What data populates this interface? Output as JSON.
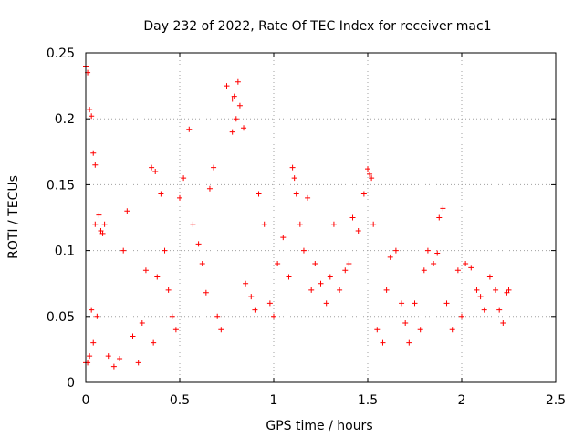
{
  "chart_data": {
    "type": "scatter",
    "title": "Day 232 of 2022, Rate Of TEC Index for receiver mac1",
    "xlabel": "GPS time / hours",
    "ylabel": "ROTI / TECUs",
    "xlim": [
      0,
      2.5
    ],
    "ylim": [
      0,
      0.25
    ],
    "xticks": [
      0,
      0.5,
      1,
      1.5,
      2,
      2.5
    ],
    "xtick_labels": [
      "0",
      "0.5",
      "1",
      "1.5",
      "2",
      "2.5"
    ],
    "yticks": [
      0,
      0.05,
      0.1,
      0.15,
      0.2,
      0.25
    ],
    "ytick_labels": [
      "0",
      "0.05",
      "0.1",
      "0.15",
      "0.2",
      "0.25"
    ],
    "grid": true,
    "marker": "+",
    "marker_color": "#ff0000",
    "series": [
      {
        "x": [
          0.0,
          0.01,
          0.02,
          0.03,
          0.04,
          0.05,
          0.03,
          0.05,
          0.07,
          0.08,
          0.09,
          0.1,
          0.06,
          0.04,
          0.02,
          0.01,
          0.0,
          0.12,
          0.15,
          0.18,
          0.2,
          0.22,
          0.25,
          0.28,
          0.3,
          0.32,
          0.35,
          0.37,
          0.38,
          0.36,
          0.4,
          0.42,
          0.44,
          0.46,
          0.48,
          0.5,
          0.52,
          0.55,
          0.57,
          0.6,
          0.62,
          0.64,
          0.66,
          0.68,
          0.7,
          0.72,
          0.75,
          0.78,
          0.8,
          0.82,
          0.84,
          0.78,
          0.79,
          0.81,
          0.85,
          0.88,
          0.9,
          0.92,
          0.95,
          0.98,
          1.0,
          1.02,
          1.05,
          1.08,
          1.1,
          1.11,
          1.12,
          1.14,
          1.16,
          1.18,
          1.2,
          1.22,
          1.25,
          1.28,
          1.3,
          1.32,
          1.35,
          1.38,
          1.4,
          1.42,
          1.45,
          1.48,
          1.5,
          1.51,
          1.52,
          1.53,
          1.55,
          1.58,
          1.6,
          1.62,
          1.65,
          1.68,
          1.7,
          1.72,
          1.75,
          1.78,
          1.8,
          1.82,
          1.85,
          1.87,
          1.88,
          1.9,
          1.92,
          1.95,
          1.98,
          2.0,
          2.02,
          2.05,
          2.08,
          2.1,
          2.12,
          2.15,
          2.18,
          2.2,
          2.22,
          2.24,
          2.25
        ],
        "y": [
          0.24,
          0.235,
          0.207,
          0.202,
          0.174,
          0.165,
          0.055,
          0.12,
          0.127,
          0.115,
          0.113,
          0.12,
          0.05,
          0.03,
          0.02,
          0.015,
          0.015,
          0.02,
          0.012,
          0.018,
          0.1,
          0.13,
          0.035,
          0.015,
          0.045,
          0.085,
          0.163,
          0.16,
          0.08,
          0.03,
          0.143,
          0.1,
          0.07,
          0.05,
          0.04,
          0.14,
          0.155,
          0.192,
          0.12,
          0.105,
          0.09,
          0.068,
          0.147,
          0.163,
          0.05,
          0.04,
          0.225,
          0.215,
          0.2,
          0.21,
          0.193,
          0.19,
          0.217,
          0.228,
          0.075,
          0.065,
          0.055,
          0.143,
          0.12,
          0.06,
          0.05,
          0.09,
          0.11,
          0.08,
          0.163,
          0.155,
          0.143,
          0.12,
          0.1,
          0.14,
          0.07,
          0.09,
          0.075,
          0.06,
          0.08,
          0.12,
          0.07,
          0.085,
          0.09,
          0.125,
          0.115,
          0.143,
          0.162,
          0.158,
          0.155,
          0.12,
          0.04,
          0.03,
          0.07,
          0.095,
          0.1,
          0.06,
          0.045,
          0.03,
          0.06,
          0.04,
          0.085,
          0.1,
          0.09,
          0.098,
          0.125,
          0.132,
          0.06,
          0.04,
          0.085,
          0.05,
          0.09,
          0.087,
          0.07,
          0.065,
          0.055,
          0.08,
          0.07,
          0.055,
          0.045,
          0.068,
          0.07
        ]
      }
    ]
  }
}
